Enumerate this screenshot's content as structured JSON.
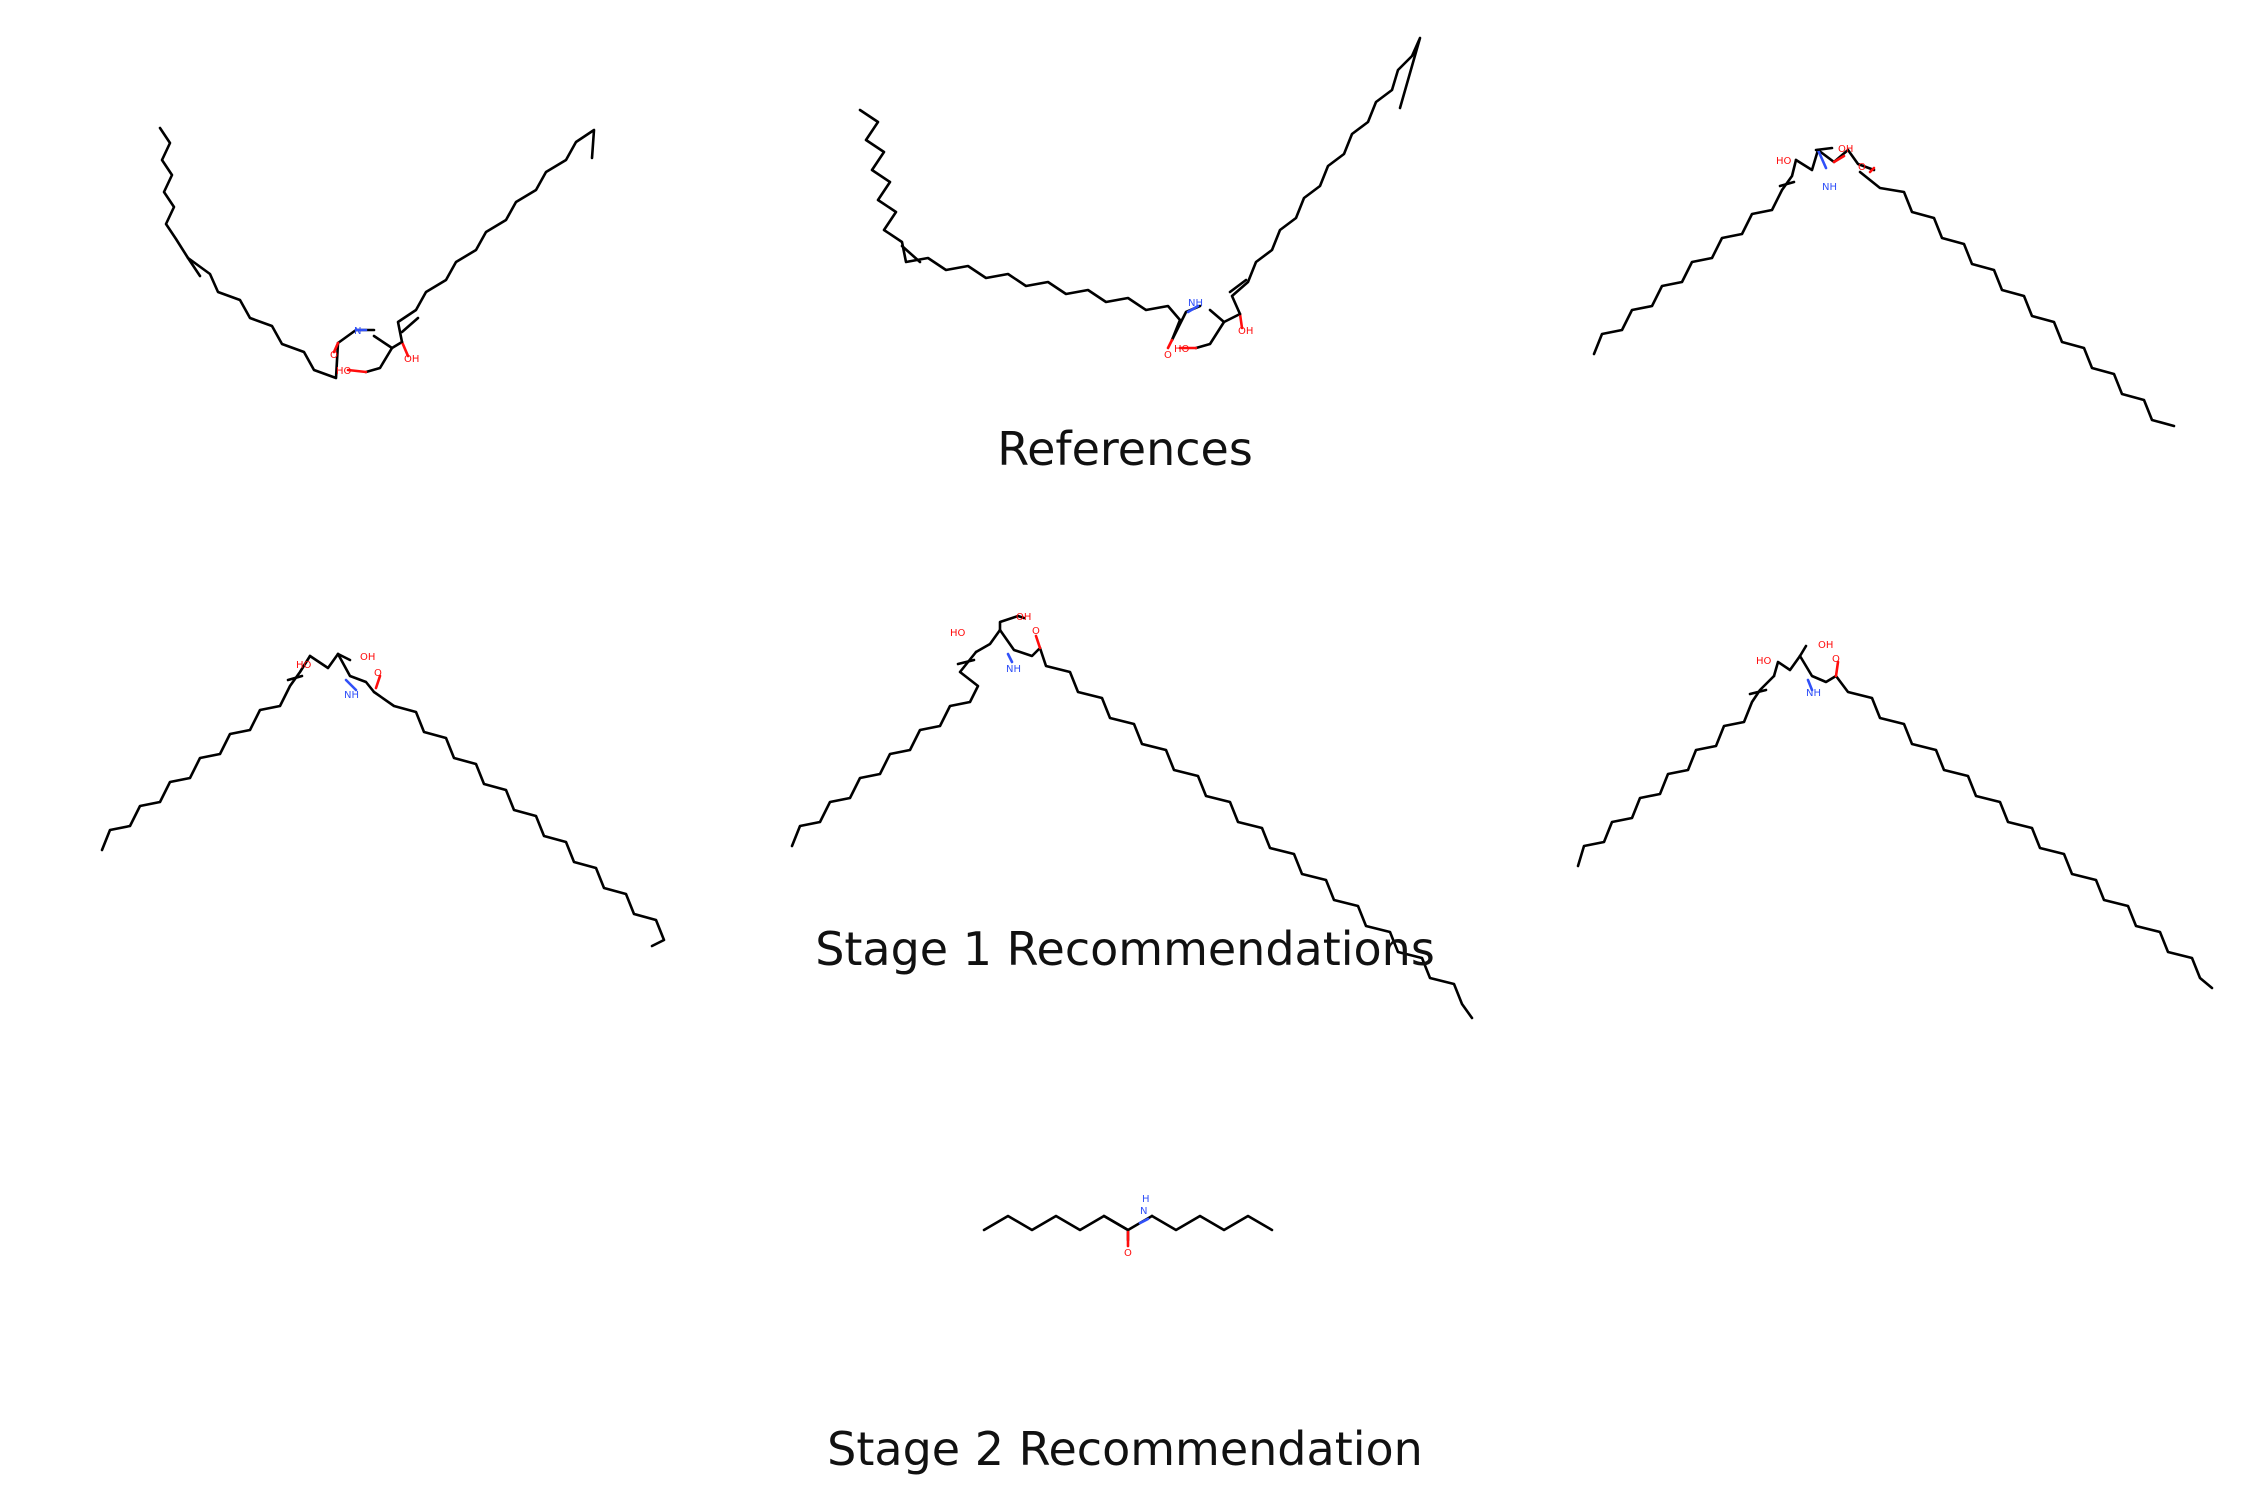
{
  "sections": [
    {
      "title": "References"
    },
    {
      "title": "Stage 1 Recommendations"
    },
    {
      "title": "Stage 2 Recommendation"
    }
  ],
  "atom_labels": {
    "hydroxyl": "OH",
    "hydroxyl_left": "HO",
    "amide_nh": "NH",
    "amide_n": "N",
    "amide_h": "H",
    "carbonyl_o": "O"
  }
}
